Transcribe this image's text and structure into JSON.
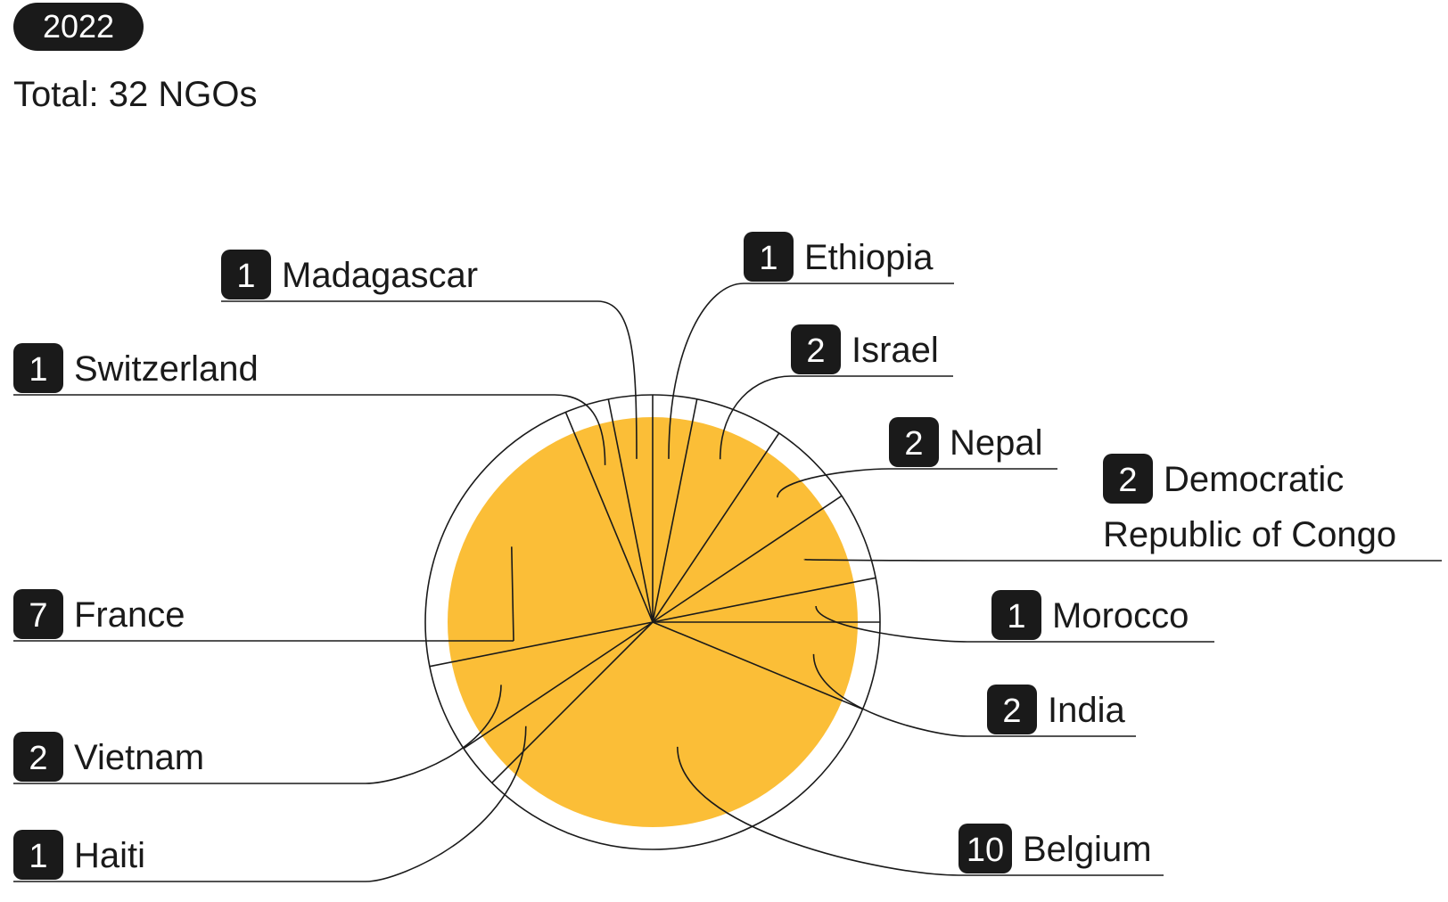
{
  "header": {
    "year": "2022",
    "total": "Total: 32 NGOs"
  },
  "chart_data": {
    "type": "pie",
    "total": 32,
    "colors": {
      "fill": "#FBBE37",
      "line": "#1a1a1a",
      "badge": "#1a1a1a",
      "badge_text": "#ffffff"
    },
    "slices": [
      {
        "label": "Ethiopia",
        "value": 1
      },
      {
        "label": "Israel",
        "value": 2
      },
      {
        "label": "Nepal",
        "value": 2
      },
      {
        "label": "Democratic Republic of Congo",
        "value": 2,
        "label_lines": [
          "Democratic",
          "Republic of Congo"
        ]
      },
      {
        "label": "Morocco",
        "value": 1
      },
      {
        "label": "India",
        "value": 2
      },
      {
        "label": "Belgium",
        "value": 10
      },
      {
        "label": "Haiti",
        "value": 1
      },
      {
        "label": "Vietnam",
        "value": 2
      },
      {
        "label": "France",
        "value": 7
      },
      {
        "label": "Switzerland",
        "value": 1
      },
      {
        "label": "Madagascar",
        "value": 1
      }
    ]
  }
}
